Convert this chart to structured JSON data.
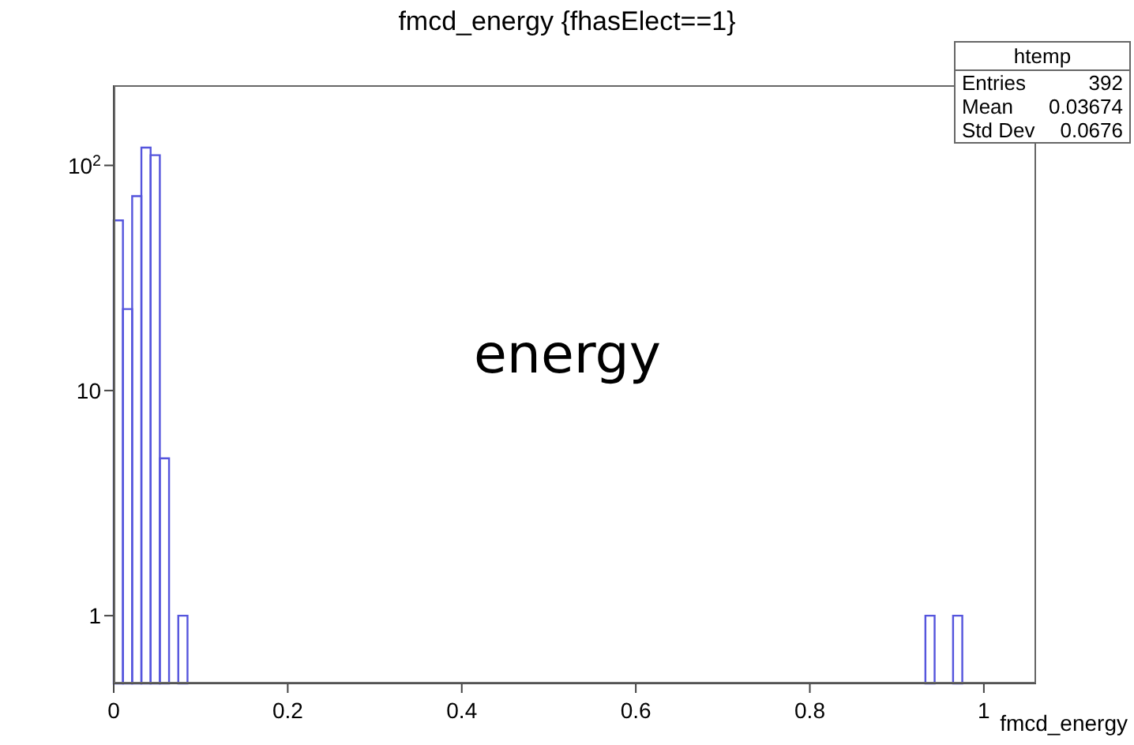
{
  "chart_data": {
    "type": "histogram",
    "title": "fmcd_energy {fhasElect==1}",
    "xlabel": "fmcd_energy",
    "bins": [
      0,
      0.0106,
      0.0212,
      0.0318,
      0.0424,
      0.053,
      0.0636,
      0.0742,
      0.0848,
      0.9328,
      0.9434,
      0.9646,
      0.9752
    ],
    "values": [
      57,
      23,
      73,
      120,
      111,
      5,
      null,
      1,
      null,
      1,
      null,
      1
    ],
    "color": "#5555dd",
    "xlim": [
      0,
      1.06
    ],
    "xticks": [
      0,
      0.2,
      0.4,
      0.6,
      0.8,
      1
    ],
    "ylim": [
      0.5,
      227
    ],
    "yticks": [
      1,
      10,
      {
        "value": 100,
        "label": "10$^{2}$"
      }
    ],
    "log": true,
    "grid": false,
    "annotations": [
      "htemp",
      "Entries 392",
      "Mean 0.03674",
      "Std Dev 0.0676",
      "energy"
    ]
  }
}
